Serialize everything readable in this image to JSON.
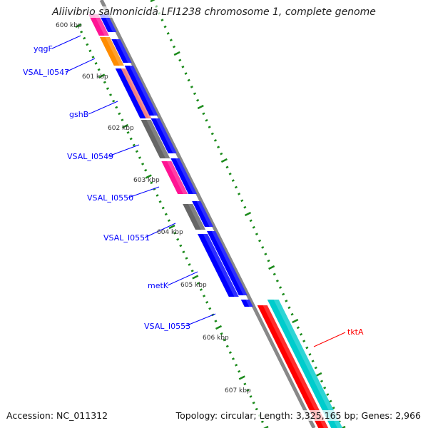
{
  "title": "Aliivibrio salmonicida LFI1238 chromosome 1, complete genome",
  "footer": {
    "accession": "Accession: NC_011312",
    "summary": "Topology: circular; Length: 3,325,165 bp; Genes: 2,966"
  },
  "ticks": [
    "600 kbp",
    "601 kbp",
    "602 kbp",
    "603 kbp",
    "604 kbp",
    "605 kbp",
    "606 kbp",
    "607 kbp"
  ],
  "genes": [
    {
      "name": "yqgF",
      "color": "#0000ff"
    },
    {
      "name": "VSAL_I0547",
      "color": "#0000ff"
    },
    {
      "name": "gshB",
      "color": "#0000ff"
    },
    {
      "name": "VSAL_I0549",
      "color": "#0000ff"
    },
    {
      "name": "VSAL_I0550",
      "color": "#0000ff"
    },
    {
      "name": "VSAL_I0551",
      "color": "#0000ff"
    },
    {
      "name": "metK",
      "color": "#0000ff"
    },
    {
      "name": "VSAL_I0553",
      "color": "#0000ff"
    },
    {
      "name": "tktA",
      "color": "#ff0000"
    }
  ]
}
